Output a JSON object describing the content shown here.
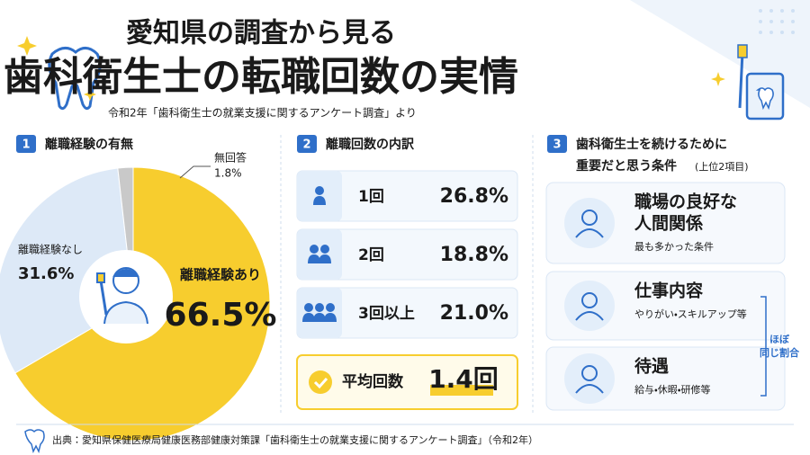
{
  "header": {
    "title_line1": "愛知県の調査から見る",
    "title_line2": "歯科衛生士の転職回数の実情",
    "subtitle": "令和2年「歯科衛生士の就業支援に関するアンケート調査」より"
  },
  "section1": {
    "number": "1",
    "title": "離職経験の有無"
  },
  "chart_data": {
    "type": "pie",
    "categories": [
      "離職経験あり",
      "離職経験なし",
      "無回答"
    ],
    "values": [
      66.5,
      31.6,
      1.8
    ],
    "value_labels": [
      "66.5%",
      "31.6%",
      "1.8%"
    ],
    "colors": [
      "#f7cd2e",
      "#dde9f7",
      "#c9c9c9"
    ]
  },
  "section2": {
    "number": "2",
    "title": "離職回数の内訳",
    "items": [
      {
        "label": "1回",
        "value": "26.8%"
      },
      {
        "label": "2回",
        "value": "18.8%"
      },
      {
        "label": "3回以上",
        "value": "21.0%"
      }
    ],
    "average": {
      "label": "平均回数",
      "value": "1.4回"
    }
  },
  "section3": {
    "number": "3",
    "title_line1": "歯科衛生士を続けるために",
    "title_line2": "重要だと思う条件",
    "note": "(上位2項目)",
    "items": [
      {
        "title": [
          "職場の良好な",
          "人間関係"
        ],
        "desc": "最も多かった条件"
      },
      {
        "title": [
          "仕事内容"
        ],
        "desc": "やりがい・スキルアップ等"
      },
      {
        "title": [
          "待遇"
        ],
        "desc": "給与・休暇・研修等"
      }
    ],
    "bracket_note": [
      "ほぼ",
      "同じ割合"
    ]
  },
  "footer": {
    "source": "出典：愛知県保健医療局健康医務部健康対策課「歯科衛生士の就業支援に関するアンケート調査」（令和2年）"
  }
}
